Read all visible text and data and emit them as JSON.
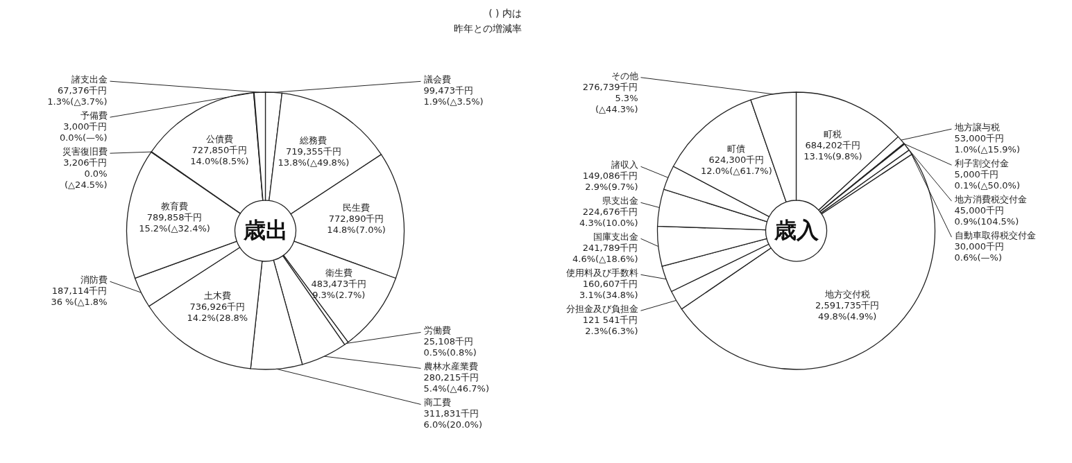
{
  "chart_data": [
    {
      "type": "donut",
      "title": "歳出",
      "categories": [
        "議会費",
        "総務費",
        "民生費",
        "衛生費",
        "労働費",
        "農林水産業費",
        "商工費",
        "土木費",
        "消防費",
        "教育費",
        "災害復旧費",
        "公債費",
        "予備費",
        "諸支出金"
      ],
      "values": [
        99473,
        719355,
        772890,
        483473,
        25108,
        280215,
        311831,
        736926,
        187114,
        789858,
        3206,
        727850,
        3000,
        67376
      ],
      "value_labels": [
        "99,473千円\n1.9%(△3.5%)",
        "719,355千円\n13.8%(△49.8%)",
        "772,890千円\n14.8%(7.0%)",
        "483,473千円\n9.3%(2.7%)",
        "25,108千円\n0.5%(0.8%)",
        "280,215千円\n5.4%(△46.7%)",
        "311,831千円\n6.0%(20.0%)",
        "736,926千円\n14.2%(28.8%",
        "187,114千円\n36 %(△1.8%",
        "789,858千円\n15.2%(△32.4%)",
        "3,206千円\n0.0%\n(△24.5%)",
        "727,850千円\n14.0%(8.5%)",
        "3,000千円\n0.0%(—%)",
        "67,376千円\n1.3%(△3.7%)"
      ],
      "colors": [
        "#ffffff",
        "#ffffff",
        "#ffffff",
        "#ffffff",
        "#ffffff",
        "#ffffff",
        "#ffffff",
        "#ffffff",
        "#ffffff",
        "#ffffff",
        "#ffffff",
        "#ffffff",
        "#ffffff",
        "#ffffff"
      ],
      "annotations": [
        "( ) 内は",
        "昨年との増減率"
      ]
    },
    {
      "type": "donut",
      "title": "歳入",
      "categories": [
        "町税",
        "地方譲与税",
        "利子割交付金",
        "地方消費税交付金",
        "自動車取得税交付金",
        "地方交付税",
        "分担金及び負担金",
        "使用料及び手数料",
        "国庫支出金",
        "県支出金",
        "諸収入",
        "町債",
        "その他"
      ],
      "values": [
        684202,
        53000,
        5000,
        45000,
        30000,
        2591735,
        121541,
        160607,
        241789,
        224676,
        149086,
        624300,
        276739
      ],
      "value_labels": [
        "684,202千円\n13.1%(9.8%)",
        "53,000千円\n1.0%(△15.9%)",
        "5,000千円\n0.1%(△50.0%)",
        "45,000千円\n0.9%(104.5%)",
        "30,000千円\n0.6%(—%)",
        "2,591,735千円\n49.8%(4.9%)",
        "121 541千円\n2.3%(6.3%)",
        "160,607千円\n3.1%(34.8%)",
        "241,789千円\n4.6%(△18.6%)",
        "224,676千円\n4.3%(10.0%)",
        "149,086千円\n2.9%(9.7%)",
        "624,300千円\n12.0%(△61.7%)",
        "276,739千円\n5.3%\n(△44.3%)"
      ],
      "colors": [
        "#ffffff",
        "#ffffff",
        "#ffffff",
        "#ffffff",
        "#ffffff",
        "#ffffff",
        "#ffffff",
        "#ffffff",
        "#ffffff",
        "#ffffff",
        "#ffffff",
        "#ffffff",
        "#ffffff"
      ]
    }
  ]
}
